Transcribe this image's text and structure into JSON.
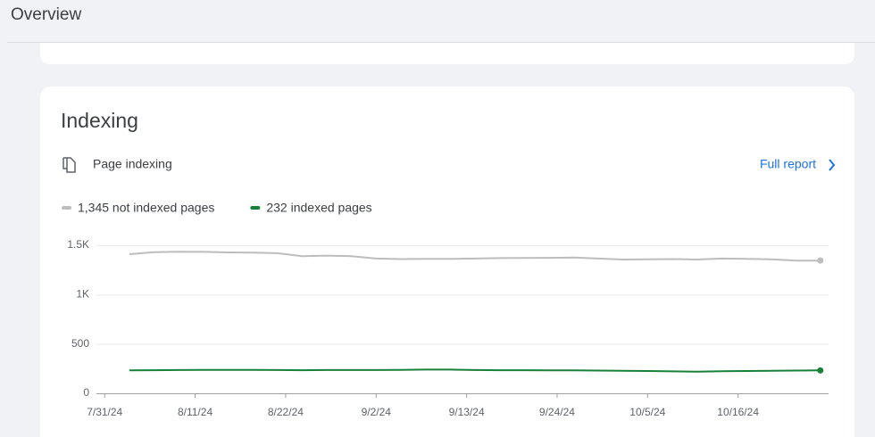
{
  "header": {
    "title": "Overview"
  },
  "card": {
    "title": "Indexing",
    "subtitle": "Page indexing",
    "link": "Full report"
  },
  "chart_data": {
    "type": "line",
    "x": [
      "8/3/24",
      "8/6/24",
      "8/9/24",
      "8/12/24",
      "8/15/24",
      "8/18/24",
      "8/21/24",
      "8/24/24",
      "8/27/24",
      "8/30/24",
      "9/2/24",
      "9/5/24",
      "9/8/24",
      "9/11/24",
      "9/14/24",
      "9/17/24",
      "9/20/24",
      "9/23/24",
      "9/26/24",
      "9/29/24",
      "10/2/24",
      "10/5/24",
      "10/8/24",
      "10/11/24",
      "10/14/24",
      "10/17/24",
      "10/20/24",
      "10/23/24",
      "10/26/24"
    ],
    "series": [
      {
        "name": "1,345 not indexed pages",
        "color": "#bdbdbd",
        "values": [
          1410,
          1430,
          1435,
          1433,
          1428,
          1425,
          1420,
          1390,
          1395,
          1390,
          1365,
          1360,
          1362,
          1362,
          1365,
          1370,
          1372,
          1373,
          1375,
          1365,
          1355,
          1358,
          1360,
          1355,
          1365,
          1362,
          1358,
          1345,
          1345
        ]
      },
      {
        "name": "232 indexed pages",
        "color": "#188038",
        "values": [
          232,
          234,
          236,
          238,
          238,
          238,
          236,
          234,
          236,
          236,
          236,
          238,
          240,
          240,
          236,
          234,
          234,
          232,
          232,
          230,
          228,
          226,
          222,
          220,
          224,
          226,
          228,
          230,
          232
        ]
      }
    ],
    "xlim": [
      "7/30/24",
      "10/27/24"
    ],
    "xticks": [
      "7/31/24",
      "8/11/24",
      "8/22/24",
      "9/2/24",
      "9/13/24",
      "9/24/24",
      "10/5/24",
      "10/16/24"
    ],
    "ylim": [
      0,
      1500
    ],
    "yticks": [
      0,
      500,
      {
        "value": 1000,
        "label": "1K"
      },
      {
        "value": 1500,
        "label": "1.5K"
      }
    ],
    "grid": true
  }
}
